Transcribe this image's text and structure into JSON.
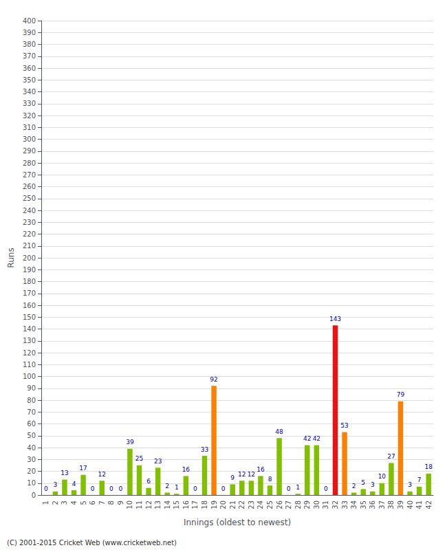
{
  "chart_data": {
    "type": "bar",
    "xlabel": "Innings (oldest to newest)",
    "ylabel": "Runs",
    "footer": "(C) 2001-2015 Cricket Web (www.cricketweb.net)",
    "categories": [
      "1",
      "2",
      "3",
      "4",
      "5",
      "6",
      "7",
      "8",
      "9",
      "10",
      "11",
      "12",
      "13",
      "14",
      "15",
      "16",
      "17",
      "18",
      "19",
      "20",
      "21",
      "22",
      "23",
      "24",
      "25",
      "26",
      "27",
      "28",
      "29",
      "30",
      "31",
      "32",
      "33",
      "34",
      "35",
      "36",
      "37",
      "38",
      "39",
      "40",
      "41",
      "42"
    ],
    "values": [
      0,
      3,
      13,
      4,
      17,
      0,
      12,
      0,
      0,
      39,
      25,
      6,
      23,
      2,
      1,
      16,
      0,
      33,
      92,
      0,
      9,
      12,
      12,
      16,
      8,
      48,
      0,
      1,
      42,
      42,
      0,
      143,
      53,
      2,
      5,
      3,
      10,
      27,
      79,
      3,
      7,
      18
    ],
    "colors": [
      "#80c000",
      "#80c000",
      "#80c000",
      "#80c000",
      "#80c000",
      "#80c000",
      "#80c000",
      "#80c000",
      "#80c000",
      "#80c000",
      "#80c000",
      "#80c000",
      "#80c000",
      "#80c000",
      "#80c000",
      "#80c000",
      "#80c000",
      "#80c000",
      "#ff8000",
      "#80c000",
      "#80c000",
      "#80c000",
      "#80c000",
      "#80c000",
      "#80c000",
      "#80c000",
      "#80c000",
      "#80c000",
      "#80c000",
      "#80c000",
      "#80c000",
      "#ee1111",
      "#ff8000",
      "#80c000",
      "#80c000",
      "#80c000",
      "#80c000",
      "#80c000",
      "#ff8000",
      "#80c000",
      "#80c000",
      "#80c000"
    ],
    "ylim": [
      0,
      400
    ],
    "yticks": [
      0,
      10,
      20,
      30,
      40,
      50,
      60,
      70,
      80,
      90,
      100,
      110,
      120,
      130,
      140,
      150,
      160,
      170,
      180,
      190,
      200,
      210,
      220,
      230,
      240,
      250,
      260,
      270,
      280,
      290,
      300,
      310,
      320,
      330,
      340,
      350,
      360,
      370,
      380,
      390,
      400
    ],
    "grid": true,
    "data_labels": true
  }
}
